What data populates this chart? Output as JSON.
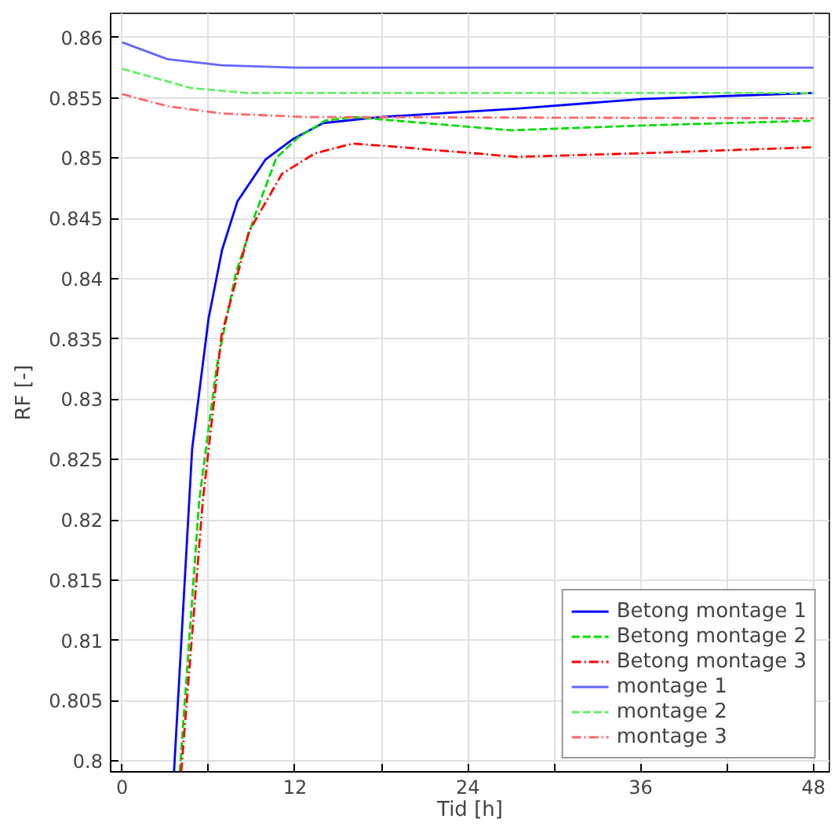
{
  "chart_data": {
    "type": "line",
    "xlabel": "Tid [h]",
    "ylabel": "RF [-]",
    "xlim": [
      -0.8,
      49.1
    ],
    "ylim": [
      0.7991,
      0.862
    ],
    "xticks": [
      0,
      {
        "value": 6,
        "label": null
      },
      12,
      {
        "value": 18,
        "label": null
      },
      24,
      {
        "value": 30,
        "label": null
      },
      36,
      {
        "value": 42,
        "label": null
      },
      48
    ],
    "yticks": [
      0.8,
      0.805,
      0.81,
      0.815,
      0.82,
      0.825,
      0.83,
      0.835,
      0.84,
      0.845,
      0.85,
      0.855,
      0.86
    ],
    "grid": true,
    "legend": "bottom right",
    "marker": "none",
    "series": [
      {
        "name": "Betong montage 1",
        "color": "#0000ff",
        "line_style": "solid",
        "x": [
          3.6,
          4.86,
          6.0,
          6.94,
          8.0,
          9.97,
          11.9,
          13.95,
          17.9,
          27.4,
          36.1,
          48
        ],
        "values": [
          0.7991,
          0.8259,
          0.8367,
          0.8424,
          0.8464,
          0.8499,
          0.8516,
          0.8529,
          0.8534,
          0.8541,
          0.8549,
          0.8554
        ]
      },
      {
        "name": "Betong montage 2",
        "color": "#00dd00",
        "line_style": "dashed",
        "x": [
          4.0,
          5.35,
          6.56,
          7.9,
          9.2,
          10.7,
          12.2,
          14.1,
          16.0,
          27.0,
          36.1,
          48
        ],
        "values": [
          0.7991,
          0.8216,
          0.8327,
          0.8405,
          0.8452,
          0.85,
          0.8517,
          0.8531,
          0.8534,
          0.8523,
          0.8527,
          0.8531
        ]
      },
      {
        "name": "Betong montage 3",
        "color": "#ff0000",
        "line_style": "dashdot",
        "x": [
          4.1,
          5.6,
          6.9,
          8.8,
          11.1,
          13.4,
          16.0,
          18.3,
          27.4,
          36.1,
          48
        ],
        "values": [
          0.7991,
          0.8216,
          0.8353,
          0.8439,
          0.8487,
          0.8504,
          0.8512,
          0.851,
          0.8501,
          0.8504,
          0.8509
        ]
      },
      {
        "name": "montage 1",
        "color": "#6666ff",
        "line_style": "solid",
        "x": [
          0,
          3.15,
          6.9,
          12,
          48
        ],
        "values": [
          0.8596,
          0.8582,
          0.8577,
          0.8575,
          0.8575
        ]
      },
      {
        "name": "montage 2",
        "color": "#66ee66",
        "line_style": "dashed",
        "x": [
          0,
          4.8,
          8.6,
          48
        ],
        "values": [
          0.8574,
          0.8558,
          0.8554,
          0.8554
        ]
      },
      {
        "name": "montage 3",
        "color": "#ff6666",
        "line_style": "dashdot",
        "x": [
          0,
          3.15,
          6.9,
          12.7,
          48
        ],
        "values": [
          0.8553,
          0.8543,
          0.8537,
          0.8534,
          0.8533
        ]
      }
    ]
  }
}
